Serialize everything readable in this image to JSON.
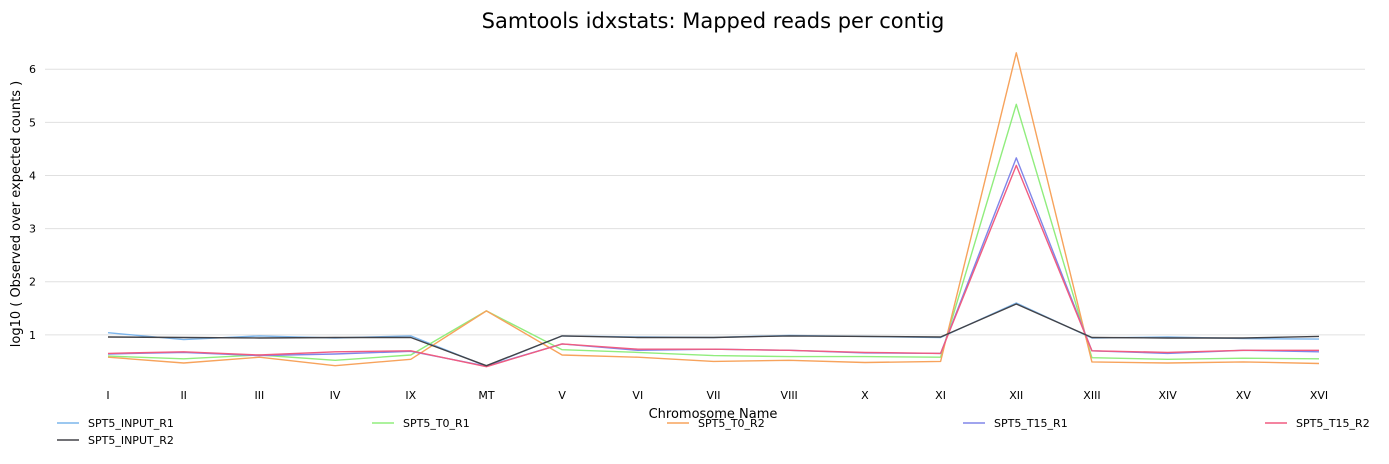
{
  "chart_data": {
    "type": "line",
    "title": "Samtools idxstats: Mapped reads per contig",
    "xlabel": "Chromosome Name",
    "ylabel": "log10 ( Observed over expected counts )",
    "categories": [
      "I",
      "II",
      "III",
      "IV",
      "IX",
      "MT",
      "V",
      "VI",
      "VII",
      "VIII",
      "X",
      "XI",
      "XII",
      "XIII",
      "XIV",
      "XV",
      "XVI"
    ],
    "ylim": [
      0.15,
      6.55
    ],
    "yticks": [
      1,
      2,
      3,
      4,
      5,
      6
    ],
    "grid": true,
    "legend_position": "bottom",
    "series": [
      {
        "name": "SPT5_INPUT_R1",
        "color": "#7cb5ec",
        "values": [
          1.04,
          0.91,
          0.98,
          0.94,
          0.98,
          0.41,
          0.98,
          0.96,
          0.95,
          0.99,
          0.97,
          0.95,
          1.6,
          0.94,
          0.96,
          0.93,
          0.92
        ]
      },
      {
        "name": "SPT5_T0_R1",
        "color": "#90ed7d",
        "values": [
          0.6,
          0.55,
          0.62,
          0.52,
          0.62,
          1.45,
          0.72,
          0.67,
          0.61,
          0.59,
          0.59,
          0.58,
          5.34,
          0.57,
          0.54,
          0.56,
          0.55
        ]
      },
      {
        "name": "SPT5_T0_R2",
        "color": "#f7a35c",
        "values": [
          0.58,
          0.47,
          0.58,
          0.42,
          0.54,
          1.45,
          0.62,
          0.58,
          0.5,
          0.52,
          0.48,
          0.5,
          6.31,
          0.49,
          0.47,
          0.49,
          0.46
        ]
      },
      {
        "name": "SPT5_T15_R1",
        "color": "#8085e9",
        "values": [
          0.64,
          0.67,
          0.61,
          0.64,
          0.69,
          0.41,
          0.83,
          0.71,
          0.73,
          0.71,
          0.66,
          0.65,
          4.33,
          0.7,
          0.65,
          0.71,
          0.68
        ]
      },
      {
        "name": "SPT5_T15_R2",
        "color": "#f15c80",
        "values": [
          0.65,
          0.68,
          0.62,
          0.68,
          0.7,
          0.4,
          0.83,
          0.73,
          0.73,
          0.71,
          0.67,
          0.65,
          4.19,
          0.7,
          0.67,
          0.71,
          0.71
        ]
      },
      {
        "name": "SPT5_INPUT_R2",
        "color": "#434348",
        "values": [
          0.96,
          0.95,
          0.94,
          0.95,
          0.95,
          0.42,
          0.98,
          0.95,
          0.95,
          0.98,
          0.97,
          0.96,
          1.58,
          0.95,
          0.94,
          0.94,
          0.97
        ]
      }
    ]
  }
}
